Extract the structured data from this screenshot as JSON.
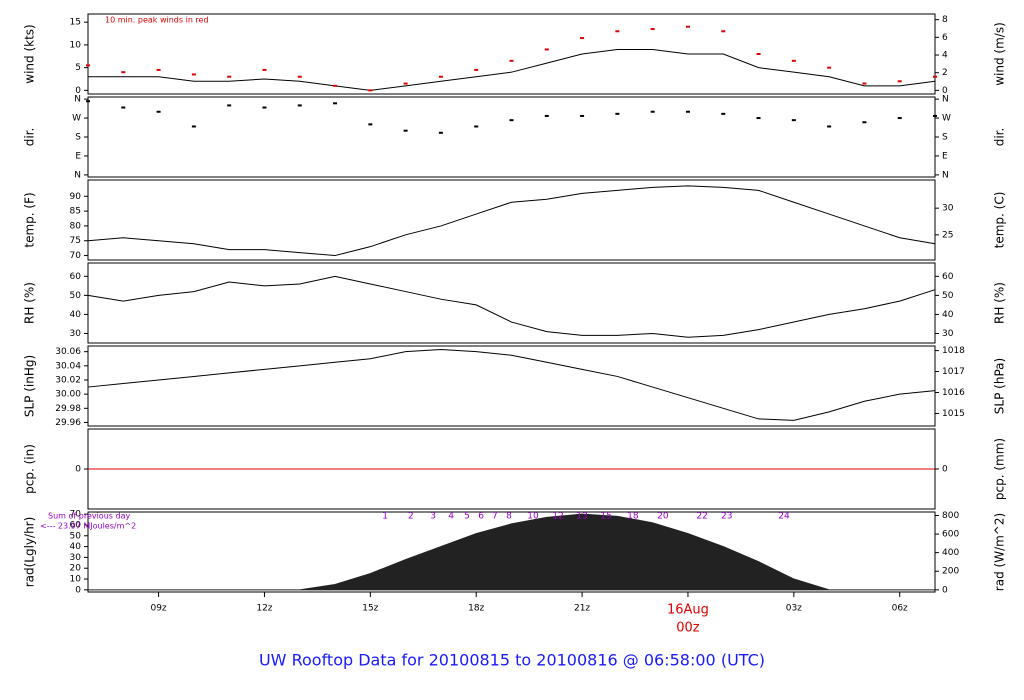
{
  "title": "UW Rooftop Data for 20100815  to  20100816 @ 06:58:00  (UTC)",
  "chart_data": [
    {
      "type": "line",
      "ylabel": "wind (kts)",
      "y2label": "wind (m/s)",
      "annotation": "10 min. peak winds in red",
      "annotation_color": "#e00000",
      "x": [
        7,
        8,
        9,
        10,
        11,
        12,
        13,
        14,
        15,
        16,
        17,
        18,
        19,
        20,
        21,
        22,
        23,
        24,
        25,
        26,
        27,
        28,
        29,
        30,
        31
      ],
      "xlim": [
        7,
        31
      ],
      "ylim": [
        -0.8,
        16.8
      ],
      "yticks": [
        0,
        5,
        10,
        15
      ],
      "y2lim": [
        -0.41,
        8.64
      ],
      "y2ticks": [
        0,
        2,
        4,
        6,
        8
      ],
      "series": [
        {
          "color": "#000000",
          "values": [
            3,
            3,
            3,
            2,
            2,
            2.5,
            2,
            1,
            0,
            1,
            2,
            3,
            4,
            6,
            8,
            9,
            9,
            8,
            8,
            5,
            4,
            3,
            1,
            1,
            2
          ]
        },
        {
          "color": "#e00000",
          "style": "points",
          "values": [
            5.5,
            4,
            4.5,
            3.5,
            3,
            4.5,
            3,
            1,
            0,
            1.5,
            3,
            4.5,
            6.5,
            9,
            11.5,
            13,
            13.5,
            14,
            13,
            8,
            6.5,
            5,
            1.5,
            2,
            3
          ]
        }
      ]
    },
    {
      "type": "scatter",
      "ylabel": "dir.",
      "y2label": "dir.",
      "x": [
        7,
        8,
        9,
        10,
        11,
        12,
        13,
        14,
        15,
        16,
        17,
        18,
        19,
        20,
        21,
        22,
        23,
        24,
        25,
        26,
        27,
        28,
        29,
        30,
        31
      ],
      "xlim": [
        7,
        31
      ],
      "ylim": [
        -10,
        370
      ],
      "yticks": [
        {
          "value": 0,
          "label": "N"
        },
        {
          "value": 90,
          "label": "E"
        },
        {
          "value": 180,
          "label": "S"
        },
        {
          "value": 270,
          "label": "W"
        },
        {
          "value": 360,
          "label": "N"
        }
      ],
      "y2lim": [
        -10,
        370
      ],
      "y2ticks": [
        {
          "value": 0,
          "label": "N"
        },
        {
          "value": 90,
          "label": "E"
        },
        {
          "value": 180,
          "label": "S"
        },
        {
          "value": 270,
          "label": "W"
        },
        {
          "value": 360,
          "label": "N"
        }
      ],
      "series": [
        {
          "color": "#000000",
          "values": [
            350,
            320,
            300,
            230,
            330,
            320,
            330,
            340,
            240,
            210,
            200,
            230,
            260,
            280,
            280,
            290,
            300,
            300,
            290,
            270,
            260,
            230,
            250,
            270,
            280
          ]
        }
      ]
    },
    {
      "type": "line",
      "ylabel": "temp. (F)",
      "y2label": "temp. (C)",
      "x": [
        7,
        8,
        9,
        10,
        11,
        12,
        13,
        14,
        15,
        16,
        17,
        18,
        19,
        20,
        21,
        22,
        23,
        24,
        25,
        26,
        27,
        28,
        29,
        30,
        31
      ],
      "xlim": [
        7,
        31
      ],
      "ylim": [
        68.5,
        95.5
      ],
      "yticks": [
        70,
        75,
        80,
        85,
        90
      ],
      "y2lim": [
        20.28,
        35.28
      ],
      "y2ticks": [
        25,
        30
      ],
      "series": [
        {
          "color": "#000000",
          "values": [
            75,
            76,
            75,
            74,
            72,
            72,
            71,
            70,
            73,
            77,
            80,
            84,
            88,
            89,
            91,
            92,
            93,
            93.5,
            93,
            92,
            88,
            84,
            80,
            76,
            74
          ]
        }
      ]
    },
    {
      "type": "line",
      "ylabel": "RH (%)",
      "y2label": "RH (%)",
      "x": [
        7,
        8,
        9,
        10,
        11,
        12,
        13,
        14,
        15,
        16,
        17,
        18,
        19,
        20,
        21,
        22,
        23,
        24,
        25,
        26,
        27,
        28,
        29,
        30,
        31
      ],
      "xlim": [
        7,
        31
      ],
      "ylim": [
        25,
        67
      ],
      "yticks": [
        30,
        40,
        50,
        60
      ],
      "y2lim": [
        25,
        67
      ],
      "y2ticks": [
        30,
        40,
        50,
        60
      ],
      "series": [
        {
          "color": "#000000",
          "values": [
            50,
            47,
            50,
            52,
            57,
            55,
            56,
            60,
            56,
            52,
            48,
            45,
            36,
            31,
            29,
            29,
            30,
            28,
            29,
            32,
            36,
            40,
            43,
            47,
            53
          ]
        }
      ]
    },
    {
      "type": "line",
      "ylabel": "SLP (inHg)",
      "y2label": "SLP (hPa)",
      "x": [
        7,
        8,
        9,
        10,
        11,
        12,
        13,
        14,
        15,
        16,
        17,
        18,
        19,
        20,
        21,
        22,
        23,
        24,
        25,
        26,
        27,
        28,
        29,
        30,
        31
      ],
      "xlim": [
        7,
        31
      ],
      "ylim": [
        29.955,
        30.068
      ],
      "yticks": [
        {
          "value": 29.96,
          "label": "29.96"
        },
        {
          "value": 29.98,
          "label": "29.98"
        },
        {
          "value": 30.0,
          "label": "30.00"
        },
        {
          "value": 30.02,
          "label": "30.02"
        },
        {
          "value": 30.04,
          "label": "30.04"
        },
        {
          "value": 30.06,
          "label": "30.06"
        }
      ],
      "y2lim": [
        1014.4,
        1018.22
      ],
      "y2ticks": [
        1015,
        1016,
        1017,
        1018
      ],
      "series": [
        {
          "color": "#000000",
          "values": [
            30.01,
            30.015,
            30.02,
            30.025,
            30.03,
            30.035,
            30.04,
            30.045,
            30.05,
            30.06,
            30.063,
            30.06,
            30.055,
            30.045,
            30.035,
            30.025,
            30.01,
            29.995,
            29.98,
            29.965,
            29.963,
            29.975,
            29.99,
            30.0,
            30.005
          ]
        }
      ]
    },
    {
      "type": "line",
      "ylabel": "pcp. (in)",
      "y2label": "pcp. (mm)",
      "x": [
        7,
        8,
        9,
        10,
        11,
        12,
        13,
        14,
        15,
        16,
        17,
        18,
        19,
        20,
        21,
        22,
        23,
        24,
        25,
        26,
        27,
        28,
        29,
        30,
        31
      ],
      "xlim": [
        7,
        31
      ],
      "ylim": [
        -1,
        1
      ],
      "yticks": [
        0
      ],
      "y2lim": [
        -1,
        1
      ],
      "y2ticks": [
        0
      ],
      "series": [
        {
          "color": "#e00000",
          "values": [
            0,
            0,
            0,
            0,
            0,
            0,
            0,
            0,
            0,
            0,
            0,
            0,
            0,
            0,
            0,
            0,
            0,
            0,
            0,
            0,
            0,
            0,
            0,
            0,
            0
          ]
        }
      ]
    },
    {
      "type": "area",
      "ylabel": "rad(Lgly/hr)",
      "y2label": "rad (W/m^2)",
      "sum_label": "Sum of previous day",
      "sum_value_label": "<--- 23.97 MJoules/m^2",
      "annotation_color": "#9900cc",
      "hour_marks": [
        {
          "x": 15.42,
          "label": "1"
        },
        {
          "x": 16.15,
          "label": "2"
        },
        {
          "x": 16.78,
          "label": "3"
        },
        {
          "x": 17.29,
          "label": "4"
        },
        {
          "x": 17.74,
          "label": "5"
        },
        {
          "x": 18.14,
          "label": "6"
        },
        {
          "x": 18.53,
          "label": "7"
        },
        {
          "x": 18.93,
          "label": "8"
        },
        {
          "x": 19.61,
          "label": "10"
        },
        {
          "x": 20.32,
          "label": "12"
        },
        {
          "x": 21.0,
          "label": "13"
        },
        {
          "x": 21.68,
          "label": "15"
        },
        {
          "x": 22.44,
          "label": "18"
        },
        {
          "x": 23.29,
          "label": "20"
        },
        {
          "x": 24.4,
          "label": "22"
        },
        {
          "x": 25.1,
          "label": "23"
        },
        {
          "x": 26.72,
          "label": "24"
        }
      ],
      "x": [
        7,
        8,
        9,
        10,
        11,
        12,
        13,
        14,
        15,
        16,
        17,
        18,
        19,
        20,
        21,
        22,
        23,
        24,
        25,
        26,
        27,
        28,
        29,
        30,
        31
      ],
      "xlim": [
        7,
        31
      ],
      "ylim": [
        -2,
        72
      ],
      "yticks": [
        0,
        10,
        20,
        30,
        40,
        50,
        60,
        70
      ],
      "y2lim": [
        -23.3,
        837.4
      ],
      "y2ticks": [
        0,
        200,
        400,
        600,
        800
      ],
      "xticks": [
        {
          "value": 9,
          "label": "09z"
        },
        {
          "value": 12,
          "label": "12z"
        },
        {
          "value": 15,
          "label": "15z"
        },
        {
          "value": 18,
          "label": "18z"
        },
        {
          "value": 21,
          "label": "21z"
        },
        {
          "value": 24,
          "label": "00z",
          "color": "#e00000"
        },
        {
          "value": 27,
          "label": "03z"
        },
        {
          "value": 30,
          "label": "06z"
        }
      ],
      "date_label": {
        "value": 24,
        "label": "16Aug",
        "color": "#e00000"
      },
      "series": [
        {
          "color": "#222222",
          "values": [
            0,
            0,
            0,
            0,
            0,
            0,
            0,
            5,
            15,
            28,
            40,
            52,
            61,
            67,
            70,
            68,
            62,
            52,
            40,
            26,
            10,
            0,
            0,
            0,
            0
          ]
        }
      ]
    }
  ]
}
